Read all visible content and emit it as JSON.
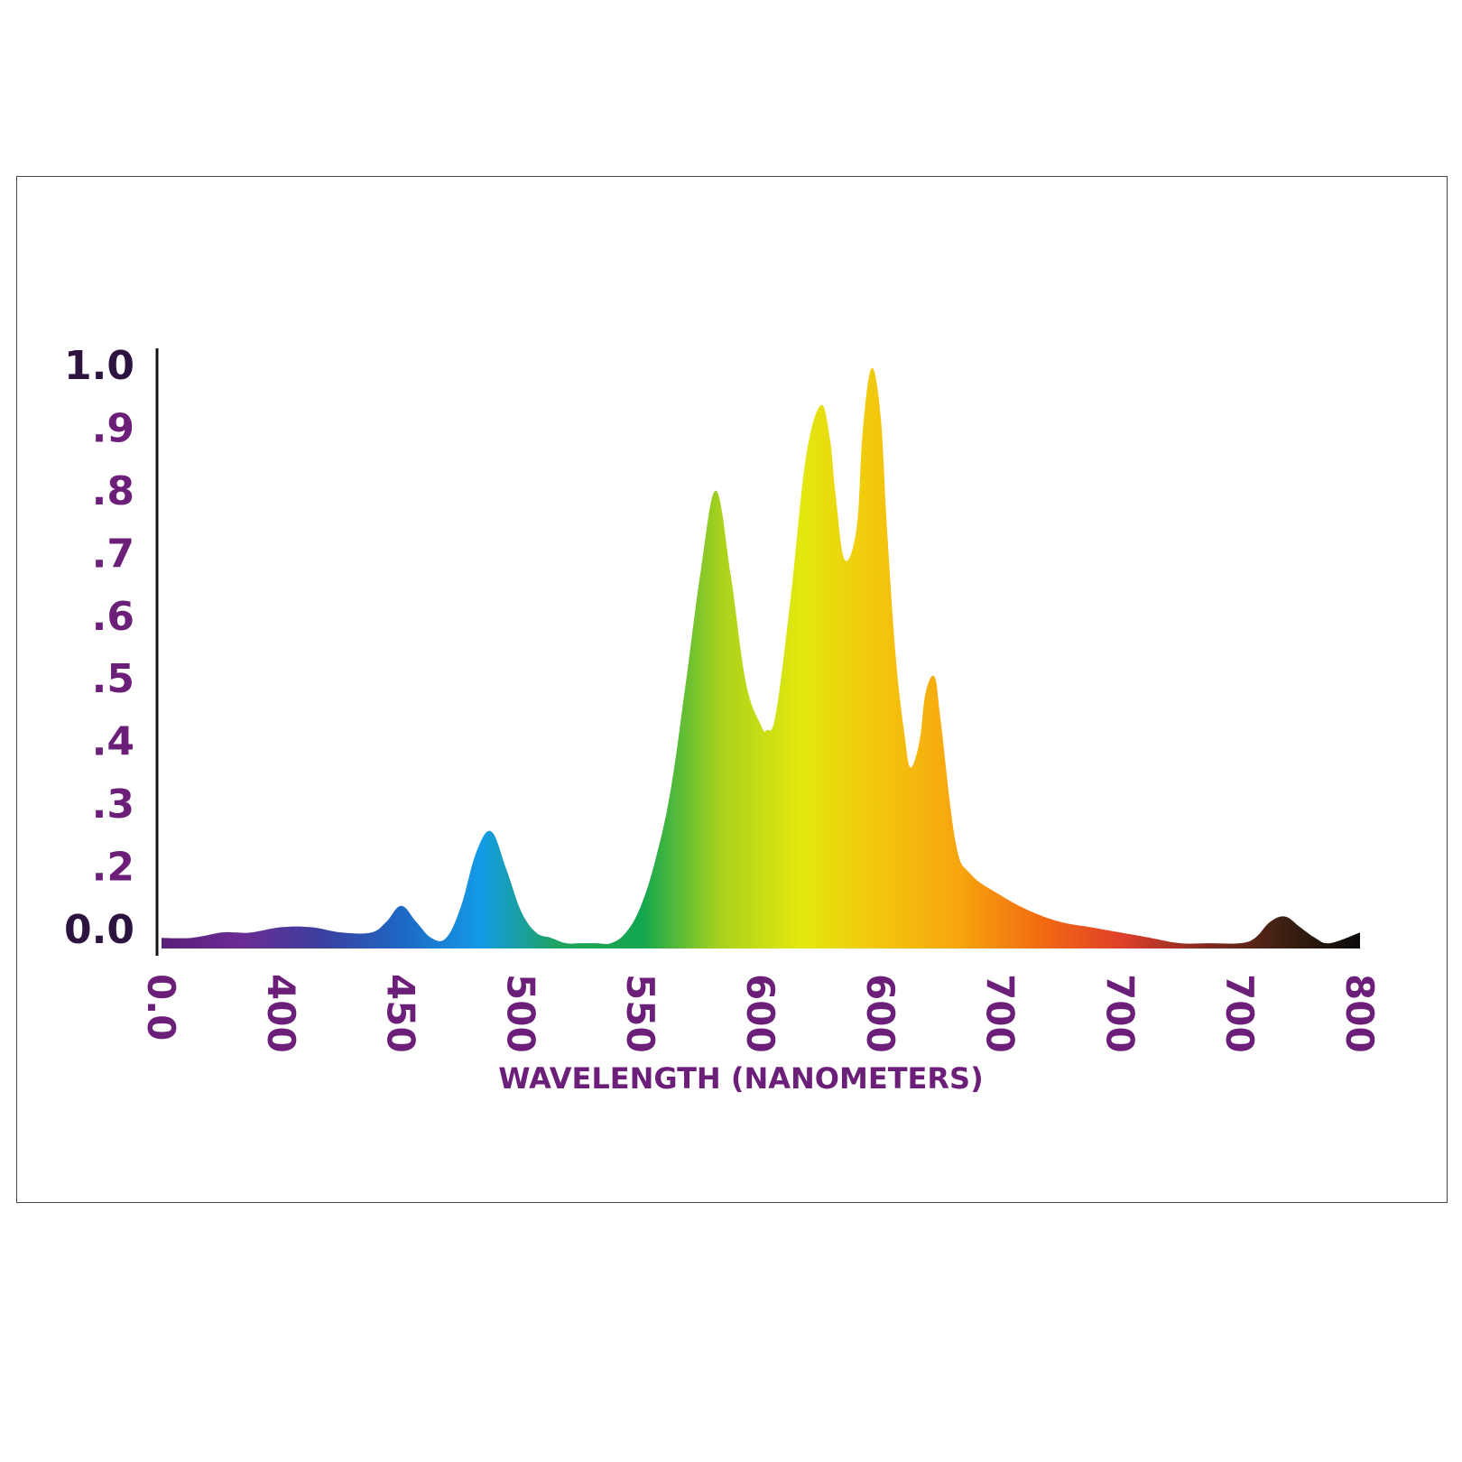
{
  "chart_data": {
    "type": "area",
    "title": "",
    "xlabel": "WAVELENGTH (NANOMETERS)",
    "ylabel": "",
    "x_tick_labels": [
      "0.0",
      "400",
      "450",
      "500",
      "550",
      "600",
      "600",
      "700",
      "700",
      "700",
      "800"
    ],
    "y_tick_labels": [
      "0.0",
      ".2",
      ".3",
      ".4",
      ".5",
      ".6",
      ".7",
      ".8",
      ".9",
      "1.0"
    ],
    "ylim": [
      0,
      1.0
    ],
    "grid": false,
    "legend": "none",
    "series": [
      {
        "x": [
          380,
          390,
          400,
          405,
          410,
          420,
          430,
          440,
          450,
          455,
          460,
          465,
          470,
          475,
          480,
          485,
          490,
          495,
          500,
          505,
          510,
          515,
          520,
          525,
          530,
          535,
          540,
          545,
          550,
          555,
          560,
          565,
          570,
          575,
          580,
          582,
          585,
          590,
          595,
          600,
          603,
          605,
          608,
          612,
          614,
          617,
          620,
          622,
          625,
          628,
          630,
          633,
          635,
          638,
          640,
          645,
          650,
          660,
          670,
          680,
          690,
          700,
          710,
          720,
          730,
          740,
          745,
          750,
          755,
          760,
          765,
          770,
          780
        ],
        "values": [
          0.02,
          0.02,
          0.03,
          0.03,
          0.03,
          0.04,
          0.04,
          0.03,
          0.03,
          0.05,
          0.08,
          0.05,
          0.02,
          0.02,
          0.08,
          0.18,
          0.22,
          0.15,
          0.07,
          0.03,
          0.02,
          0.01,
          0.01,
          0.01,
          0.01,
          0.03,
          0.08,
          0.17,
          0.3,
          0.5,
          0.71,
          0.86,
          0.7,
          0.5,
          0.42,
          0.41,
          0.44,
          0.66,
          0.92,
          1.02,
          0.96,
          0.85,
          0.73,
          0.79,
          0.97,
          1.09,
          1.0,
          0.8,
          0.55,
          0.4,
          0.34,
          0.39,
          0.48,
          0.51,
          0.43,
          0.2,
          0.14,
          0.1,
          0.07,
          0.05,
          0.04,
          0.03,
          0.02,
          0.01,
          0.01,
          0.01,
          0.02,
          0.05,
          0.06,
          0.04,
          0.02,
          0.01,
          0.03
        ]
      }
    ]
  },
  "colors": {
    "axis_text": "#2d1440",
    "axis_text_accent": "#6b1f78",
    "axis_line": "#111111",
    "frame": "#444444",
    "spectrum_stops": [
      "#5a1f7a",
      "#6a2c94",
      "#3b3f9e",
      "#1e67c4",
      "#139be6",
      "#1ea35a",
      "#12a650",
      "#a9d21c",
      "#e3e80e",
      "#f3c50d",
      "#f7a40e",
      "#f26b10",
      "#e0402a",
      "#8a2a20",
      "#3f2112",
      "#0a0a0a"
    ]
  }
}
